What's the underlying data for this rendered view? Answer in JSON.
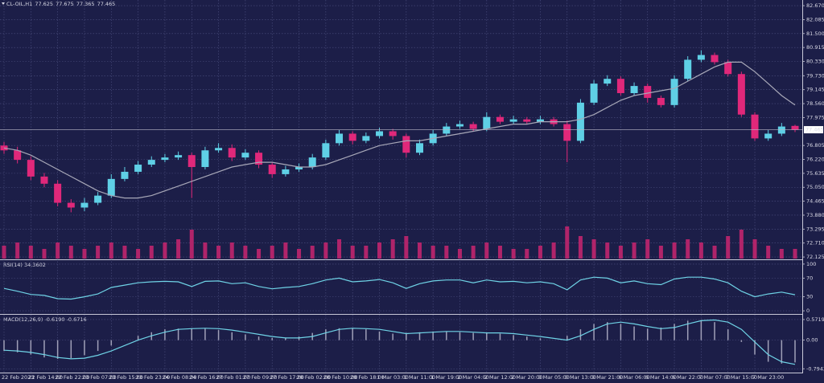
{
  "chart_data": [
    {
      "type": "candlestick",
      "title": "CL-OIL,H1",
      "up_color": "#5fd0e6",
      "down_color": "#e0287a",
      "grid": true,
      "ylim": [
        72.06,
        82.84
      ],
      "yticks": [
        {
          "value": 82.67,
          "label": "82.670"
        },
        82.085,
        {
          "value": 81.5,
          "label": "81.500"
        },
        80.915,
        {
          "value": 80.33,
          "label": "80.330"
        },
        {
          "value": 79.73,
          "label": "79.730"
        },
        79.145,
        {
          "value": 78.56,
          "label": "78.560"
        },
        77.975,
        76.805,
        {
          "value": 76.22,
          "label": "76.220"
        },
        75.635,
        {
          "value": 75.05,
          "label": "75.050"
        },
        74.465,
        {
          "value": 73.88,
          "label": "73.880"
        },
        73.295,
        {
          "value": 72.71,
          "label": "72.710"
        },
        72.125
      ],
      "open": [
        76.8,
        76.6,
        76.2,
        75.5,
        75.2,
        74.4,
        74.2,
        74.4,
        74.7,
        75.4,
        75.7,
        76,
        76.2,
        76.3,
        76.4,
        75.9,
        76.6,
        76.7,
        76.3,
        76.5,
        76,
        75.6,
        75.8,
        75.9,
        76.3,
        76.9,
        77.3,
        77,
        77.2,
        77.4,
        77.2,
        76.5,
        76.9,
        77.3,
        77.6,
        77.7,
        77.5,
        78,
        77.8,
        77.9,
        77.8,
        77.9,
        77.7,
        77,
        78.6,
        79.4,
        79.6,
        79,
        79.3,
        78.8,
        78.5,
        79.6,
        80.4,
        80.6,
        80.3,
        79.8,
        78.1,
        77.1,
        77.3,
        77.625
      ],
      "high": [
        76.95,
        76.75,
        76.35,
        75.65,
        75.35,
        74.55,
        74.6,
        74.85,
        75.6,
        75.9,
        76.15,
        76.35,
        76.45,
        76.55,
        76.5,
        76.75,
        76.9,
        76.85,
        76.65,
        76.6,
        76.1,
        75.95,
        76.05,
        76.45,
        77.05,
        77.45,
        77.4,
        77.35,
        77.55,
        77.5,
        77.3,
        77.05,
        77.45,
        77.75,
        77.85,
        77.8,
        78.2,
        78.1,
        78.05,
        78,
        78.05,
        78,
        77.85,
        78.75,
        79.55,
        79.75,
        79.7,
        79.45,
        79.4,
        78.9,
        79.75,
        80.55,
        80.8,
        80.7,
        80.4,
        79.9,
        78.2,
        77.45,
        77.75,
        77.675
      ],
      "low": [
        76.45,
        76.05,
        75.35,
        75.05,
        74.25,
        74,
        74.05,
        74.3,
        74.6,
        75.3,
        75.6,
        75.9,
        76.1,
        76.2,
        74.6,
        75.8,
        76.5,
        76.15,
        76.2,
        75.85,
        75.45,
        75.5,
        75.7,
        75.8,
        76.2,
        76.8,
        76.85,
        76.9,
        77.1,
        77.05,
        76.3,
        76.4,
        76.8,
        77.2,
        77.5,
        77.4,
        77.4,
        77.7,
        77.7,
        77.7,
        77.7,
        77.6,
        76.1,
        76.9,
        78.5,
        79.3,
        78.9,
        78.9,
        78.6,
        78.4,
        78.4,
        79.5,
        80.3,
        80.2,
        79.7,
        78,
        77,
        77,
        77.2,
        77.365
      ],
      "close": [
        76.6,
        76.2,
        75.5,
        75.2,
        74.4,
        74.2,
        74.4,
        74.7,
        75.4,
        75.7,
        76,
        76.2,
        76.3,
        76.4,
        75.9,
        76.6,
        76.7,
        76.3,
        76.5,
        76,
        75.6,
        75.8,
        75.9,
        76.3,
        76.9,
        77.3,
        77,
        77.2,
        77.4,
        77.2,
        76.5,
        76.9,
        77.3,
        77.6,
        77.7,
        77.5,
        78,
        77.8,
        77.9,
        77.8,
        77.9,
        77.7,
        77,
        78.6,
        79.4,
        79.6,
        79,
        79.3,
        78.8,
        78.5,
        79.6,
        80.4,
        80.6,
        80.3,
        79.8,
        78.1,
        77.1,
        77.3,
        77.6,
        77.465
      ],
      "ma": {
        "color": "#a8a8b8",
        "values": [
          76.7,
          76.6,
          76.4,
          76.1,
          75.8,
          75.5,
          75.2,
          74.9,
          74.7,
          74.6,
          74.6,
          74.7,
          74.9,
          75.1,
          75.3,
          75.5,
          75.7,
          75.9,
          76,
          76.1,
          76.1,
          76,
          75.9,
          75.9,
          76,
          76.2,
          76.4,
          76.6,
          76.8,
          76.9,
          77,
          77,
          77.1,
          77.2,
          77.3,
          77.4,
          77.5,
          77.6,
          77.7,
          77.7,
          77.8,
          77.8,
          77.8,
          77.9,
          78.1,
          78.4,
          78.7,
          78.9,
          79,
          79.1,
          79.2,
          79.5,
          79.8,
          80.1,
          80.3,
          80.3,
          79.9,
          79.4,
          78.9,
          78.5
        ]
      },
      "volume": {
        "color": "#b0246a",
        "values": [
          4,
          5,
          4,
          3,
          5,
          4,
          3,
          4,
          5,
          4,
          3,
          4,
          5,
          6,
          9,
          5,
          4,
          5,
          4,
          3,
          4,
          5,
          3,
          4,
          5,
          6,
          4,
          4,
          5,
          6,
          7,
          5,
          4,
          4,
          3,
          4,
          5,
          4,
          3,
          3,
          4,
          5,
          10,
          7,
          6,
          5,
          4,
          5,
          6,
          4,
          5,
          6,
          5,
          4,
          7,
          9,
          6,
          4,
          3,
          3
        ]
      }
    },
    {
      "type": "line",
      "title": "RSI(14) 34.3602",
      "color": "#6fd3e6",
      "grid": true,
      "ylim": [
        -5,
        105
      ],
      "yticks": [
        100,
        70,
        30,
        0
      ],
      "values": [
        48,
        42,
        35,
        33,
        26,
        25,
        30,
        36,
        50,
        55,
        60,
        62,
        63,
        62,
        52,
        63,
        64,
        58,
        60,
        52,
        47,
        50,
        52,
        58,
        66,
        70,
        62,
        64,
        67,
        60,
        48,
        58,
        64,
        66,
        66,
        60,
        66,
        62,
        63,
        60,
        62,
        58,
        45,
        66,
        72,
        70,
        60,
        64,
        58,
        56,
        68,
        72,
        72,
        68,
        60,
        42,
        30,
        36,
        40,
        34.3602
      ]
    },
    {
      "type": "macd",
      "title": "MACD(12,26,9) -0.6190 -0.6716",
      "grid": true,
      "ylim": [
        -0.9,
        0.66
      ],
      "yticks": [
        0.5719,
        {
          "value": 0,
          "label": "0.00"
        },
        -0.7942
      ],
      "main": {
        "color": "#a0a0b8",
        "values": [
          -0.3,
          -0.34,
          -0.4,
          -0.48,
          -0.52,
          -0.5,
          -0.42,
          -0.3,
          -0.15,
          0,
          0.12,
          0.22,
          0.3,
          0.32,
          0.33,
          0.32,
          0.28,
          0.22,
          0.16,
          0.1,
          0.06,
          0.06,
          0.1,
          0.2,
          0.3,
          0.33,
          0.32,
          0.3,
          0.24,
          0.18,
          0.2,
          0.22,
          0.24,
          0.24,
          0.22,
          0.2,
          0.2,
          0.18,
          0.14,
          0.1,
          0.05,
          0,
          0.12,
          0.3,
          0.45,
          0.5,
          0.45,
          0.38,
          0.32,
          0.35,
          0.45,
          0.54,
          0.56,
          0.5,
          0.3,
          -0.05,
          -0.4,
          -0.6,
          -0.65,
          -0.619
        ]
      },
      "signal": {
        "color": "#6fd3e6",
        "values": [
          -0.28,
          -0.3,
          -0.34,
          -0.4,
          -0.48,
          -0.52,
          -0.5,
          -0.42,
          -0.3,
          -0.15,
          0,
          0.12,
          0.22,
          0.3,
          0.32,
          0.33,
          0.32,
          0.28,
          0.22,
          0.16,
          0.1,
          0.06,
          0.06,
          0.1,
          0.2,
          0.3,
          0.33,
          0.32,
          0.3,
          0.24,
          0.18,
          0.2,
          0.22,
          0.24,
          0.24,
          0.22,
          0.2,
          0.2,
          0.18,
          0.14,
          0.1,
          0.05,
          0,
          0.12,
          0.3,
          0.45,
          0.5,
          0.45,
          0.38,
          0.32,
          0.35,
          0.45,
          0.54,
          0.56,
          0.5,
          0.3,
          -0.05,
          -0.4,
          -0.6,
          -0.6716
        ]
      },
      "categories": [
        "22 Feb 2023",
        null,
        "22 Feb 14:00",
        null,
        "22 Feb 22:00",
        null,
        "23 Feb 07:00",
        null,
        "23 Feb 15:00",
        null,
        "23 Feb 23:00",
        null,
        "24 Feb 08:00",
        null,
        "24 Feb 16:00",
        null,
        "27 Feb 01:00",
        null,
        "27 Feb 09:00",
        null,
        "27 Feb 17:00",
        null,
        "28 Feb 02:00",
        null,
        "28 Feb 10:00",
        null,
        "28 Feb 18:00",
        null,
        "1 Mar 03:00",
        null,
        "1 Mar 11:00",
        null,
        "1 Mar 19:00",
        null,
        "2 Mar 04:00",
        null,
        "2 Mar 12:00",
        null,
        "2 Mar 20:00",
        null,
        "3 Mar 05:00",
        null,
        "3 Mar 13:00",
        null,
        "3 Mar 21:00",
        null,
        "6 Mar 06:00",
        null,
        "6 Mar 14:00",
        null,
        "6 Mar 22:00",
        null,
        "7 Mar 07:00",
        null,
        "7 Mar 15:00",
        null,
        "7 Mar 23:00",
        null,
        null,
        null
      ]
    }
  ]
}
